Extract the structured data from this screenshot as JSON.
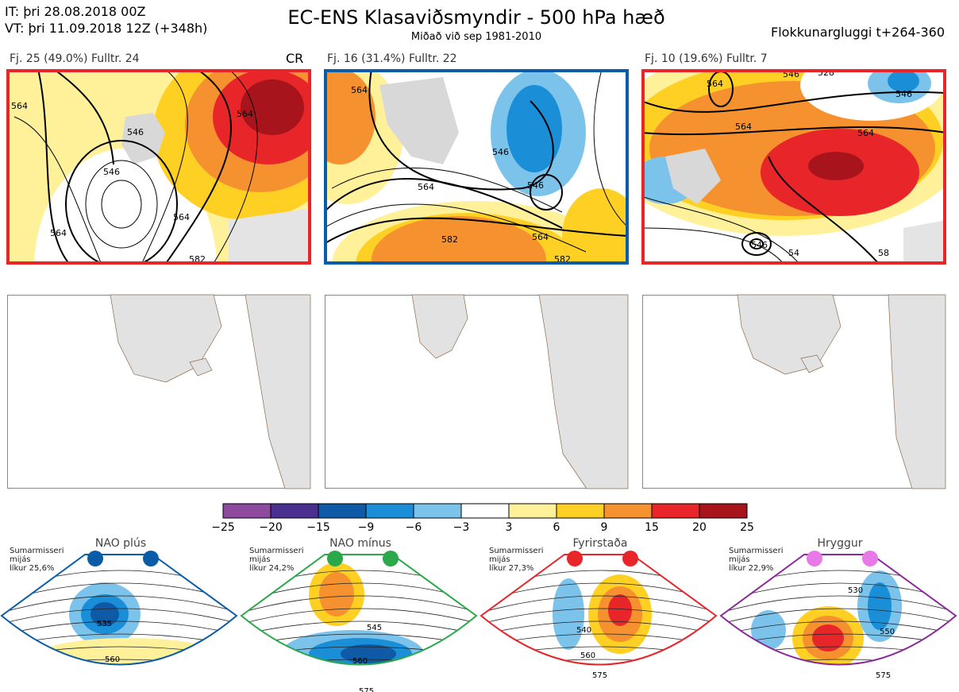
{
  "header": {
    "it_line": "IT: þri 28.08.2018 00Z",
    "vt_line": "VT: þri 11.09.2018 12Z  (+348h)",
    "title": "EC-ENS Klasaviðsmyndir - 500 hPa hæð",
    "subtitle": "Miðað við sep 1981-2010",
    "window": "Flokkunargluggi t+264-360"
  },
  "clusters": [
    {
      "label": "Fj. 25 (49.0%)   Fulltr. 24",
      "frame_color": "#e8262a",
      "regime": "CR",
      "contour_labels": [
        "546",
        "564",
        "546",
        "564",
        "564",
        "582",
        "564"
      ]
    },
    {
      "label": "Fj. 16 (31.4%)   Fulltr. 22",
      "frame_color": "#0a5ca8",
      "regime": "",
      "contour_labels": [
        "564",
        "546",
        "546",
        "564",
        "582",
        "564",
        "582"
      ]
    },
    {
      "label": "Fj. 10 (19.6%)   Fulltr. 7",
      "frame_color": "#e8262a",
      "regime": "",
      "contour_labels": [
        "564",
        "546",
        "528",
        "546",
        "564",
        "564",
        "546",
        "54",
        "58"
      ]
    }
  ],
  "colorbar": {
    "colors": [
      "#8e4a9e",
      "#4a3190",
      "#0e5aa6",
      "#1a8fd8",
      "#7cc3ec",
      "#ffffff",
      "#fff09a",
      "#ffd024",
      "#f5922f",
      "#e8262a",
      "#a8141c"
    ],
    "ticks": [
      "−25",
      "−20",
      "−15",
      "−9",
      "−6",
      "−3",
      "3",
      "6",
      "9",
      "15",
      "20",
      "25"
    ]
  },
  "regimes": [
    {
      "name": "NAO plús",
      "info": [
        "Sumarmisseri",
        "mijás",
        "líkur 25,6%"
      ],
      "color": "#0a5ca8",
      "contours": [
        "535",
        "560"
      ]
    },
    {
      "name": "NAO mínus",
      "info": [
        "Sumarmisseri",
        "mijás",
        "líkur 24,2%"
      ],
      "color": "#2aa84a",
      "contours": [
        "545",
        "560",
        "575"
      ]
    },
    {
      "name": "Fyrirstaða",
      "info": [
        "Sumarmisseri",
        "mijás",
        "líkur 27,3%"
      ],
      "color": "#e8262a",
      "contours": [
        "540",
        "560",
        "575"
      ]
    },
    {
      "name": "Hryggur",
      "info": [
        "Sumarmisseri",
        "mijás",
        "líkur 22,9%"
      ],
      "color": "#8a2a9a",
      "contours": [
        "530",
        "550",
        "575"
      ]
    }
  ]
}
